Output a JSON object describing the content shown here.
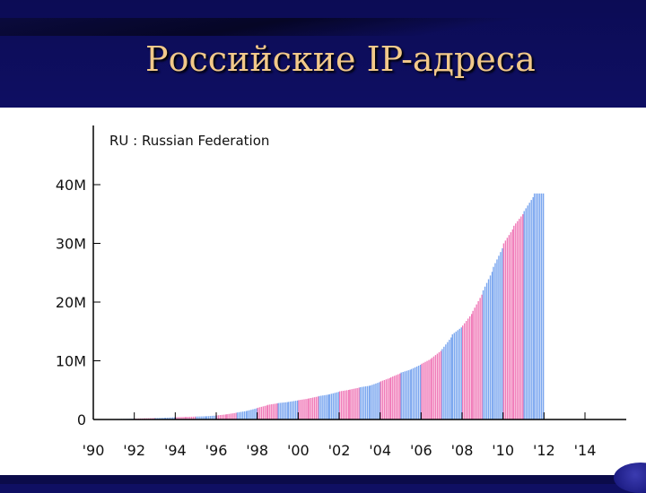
{
  "slide": {
    "title": "Российские IP-адреса"
  },
  "chart_data": {
    "type": "bar",
    "title": "RU : Russian Federation",
    "xlabel": "",
    "ylabel": "",
    "xlim": [
      1990,
      2016
    ],
    "ylim": [
      0,
      48000000
    ],
    "y_ticks": [
      {
        "value": 0,
        "label": "0"
      },
      {
        "value": 10000000,
        "label": "10M"
      },
      {
        "value": 20000000,
        "label": "20M"
      },
      {
        "value": 30000000,
        "label": "30M"
      },
      {
        "value": 40000000,
        "label": "40M"
      }
    ],
    "x_ticks": [
      {
        "value": 1990,
        "label": "'90"
      },
      {
        "value": 1992,
        "label": "'92"
      },
      {
        "value": 1994,
        "label": "'94"
      },
      {
        "value": 1996,
        "label": "'96"
      },
      {
        "value": 1998,
        "label": "'98"
      },
      {
        "value": 2000,
        "label": "'00"
      },
      {
        "value": 2002,
        "label": "'02"
      },
      {
        "value": 2004,
        "label": "'04"
      },
      {
        "value": 2006,
        "label": "'06"
      },
      {
        "value": 2008,
        "label": "'08"
      },
      {
        "value": 2010,
        "label": "'10"
      },
      {
        "value": 2012,
        "label": "'12"
      },
      {
        "value": 2014,
        "label": "'14"
      }
    ],
    "grid": false,
    "colors": {
      "even_year": "#f07ab8",
      "odd_year": "#7aa6ef"
    },
    "series": [
      {
        "x": [
          1990.0,
          1990.5,
          1991.0,
          1991.5,
          1992.0,
          1992.5,
          1993.0,
          1993.5,
          1994.0,
          1994.5,
          1995.0,
          1995.5,
          1996.0,
          1996.5,
          1997.0,
          1997.5,
          1998.0,
          1998.5,
          1999.0,
          1999.5,
          2000.0,
          2000.5,
          2001.0,
          2001.5,
          2002.0,
          2002.5,
          2003.0,
          2003.5,
          2004.0,
          2004.5,
          2005.0,
          2005.5,
          2006.0,
          2006.5,
          2007.0,
          2007.5,
          2008.0,
          2008.5,
          2009.0,
          2009.5,
          2010.0,
          2010.5,
          2011.0,
          2011.5
        ],
        "values": [
          50000,
          60000,
          80000,
          100000,
          150000,
          200000,
          250000,
          300000,
          400000,
          450000,
          500000,
          550000,
          700000,
          900000,
          1200000,
          1500000,
          2000000,
          2500000,
          2800000,
          3000000,
          3300000,
          3600000,
          4000000,
          4300000,
          4800000,
          5100000,
          5500000,
          5800000,
          6500000,
          7200000,
          8000000,
          8600000,
          9500000,
          10500000,
          12000000,
          14500000,
          16000000,
          18500000,
          22000000,
          26000000,
          30000000,
          33000000,
          35500000,
          38500000
        ]
      }
    ]
  }
}
